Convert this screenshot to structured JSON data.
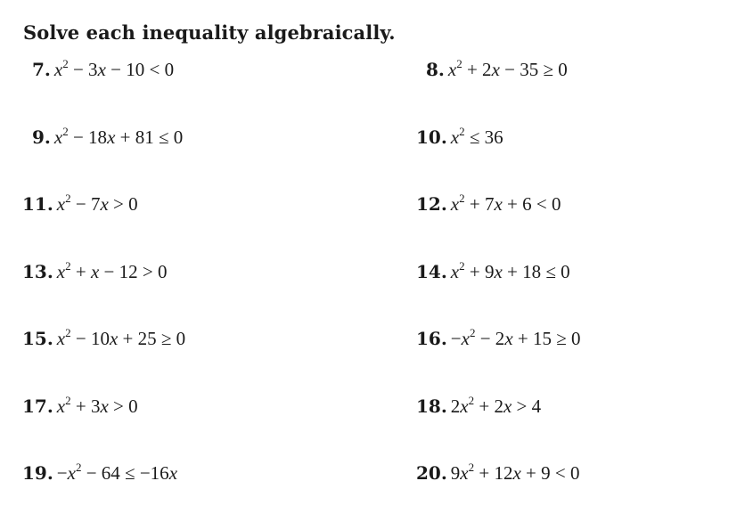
{
  "title": "Solve each inequality algebraically.",
  "problems": [
    {
      "number": "7.",
      "html": "<i>x</i><sup>2</sup> &minus; 3<i>x</i> &minus; 10 &lt; 0"
    },
    {
      "number": "8.",
      "html": "<i>x</i><sup>2</sup> + 2<i>x</i> &minus; 35 &ge; 0"
    },
    {
      "number": "9.",
      "html": "<i>x</i><sup>2</sup> &minus; 18<i>x</i> + 81 &le; 0"
    },
    {
      "number": "10.",
      "html": "<i>x</i><sup>2</sup> &le; 36"
    },
    {
      "number": "11.",
      "html": "<i>x</i><sup>2</sup> &minus; 7<i>x</i> &gt; 0"
    },
    {
      "number": "12.",
      "html": "<i>x</i><sup>2</sup> + 7<i>x</i> + 6 &lt; 0"
    },
    {
      "number": "13.",
      "html": "<i>x</i><sup>2</sup> + <i>x</i> &minus; 12 &gt; 0"
    },
    {
      "number": "14.",
      "html": "<i>x</i><sup>2</sup> + 9<i>x</i> + 18 &le; 0"
    },
    {
      "number": "15.",
      "html": "<i>x</i><sup>2</sup> &minus; 10<i>x</i> + 25 &ge; 0"
    },
    {
      "number": "16.",
      "html": "&minus;<i>x</i><sup>2</sup> &minus; 2<i>x</i> + 15 &ge; 0"
    },
    {
      "number": "17.",
      "html": "<i>x</i><sup>2</sup> + 3<i>x</i> &gt; 0"
    },
    {
      "number": "18.",
      "html": "2<i>x</i><sup>2</sup> + 2<i>x</i> &gt; 4"
    },
    {
      "number": "19.",
      "html": "&minus;<i>x</i><sup>2</sup> &minus; 64 &le; &minus;16<i>x</i>"
    },
    {
      "number": "20.",
      "html": "9<i>x</i><sup>2</sup> + 12<i>x</i> + 9 &lt; 0"
    }
  ]
}
